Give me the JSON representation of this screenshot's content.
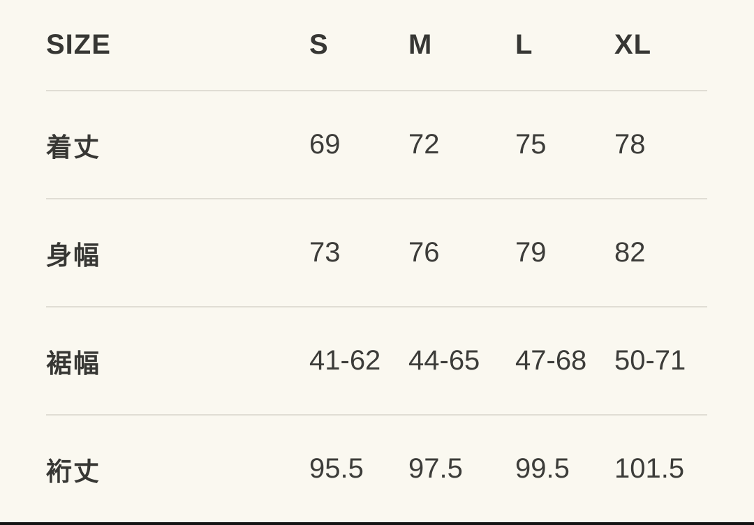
{
  "size_chart": {
    "header": {
      "label": "SIZE",
      "sizes": [
        "S",
        "M",
        "L",
        "XL"
      ]
    },
    "rows": [
      {
        "label": "着丈",
        "values": [
          "69",
          "72",
          "75",
          "78"
        ]
      },
      {
        "label": "身幅",
        "values": [
          "73",
          "76",
          "79",
          "82"
        ]
      },
      {
        "label": "裾幅",
        "values": [
          "41-62",
          "44-65",
          "47-68",
          "50-71"
        ]
      },
      {
        "label": "裄丈",
        "values": [
          "95.5",
          "97.5",
          "99.5",
          "101.5"
        ]
      }
    ],
    "colors": {
      "background": "#FAF8F0",
      "text": "#3C3C39",
      "divider": "#E0DDD4",
      "bottom_bar": "#141414"
    }
  }
}
